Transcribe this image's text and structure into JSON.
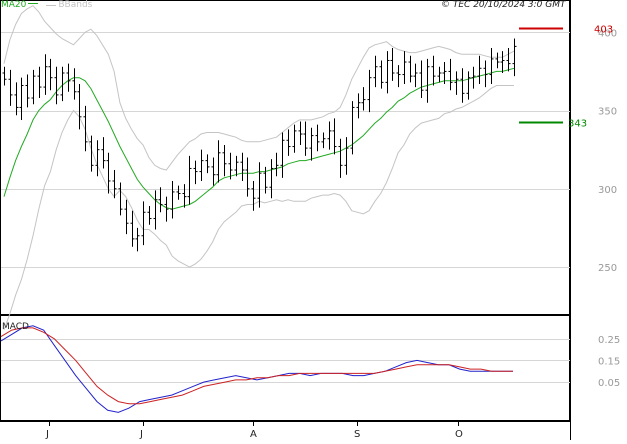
{
  "header": {
    "legend_ma": "MA20",
    "legend_bands": "BBands",
    "copyright": "© TEC 20/10/2024 3:0 GMT"
  },
  "chart_data": [
    {
      "type": "ohlc",
      "panel": "price",
      "ylim": [
        220,
        420
      ],
      "yticks": [
        "400",
        "350",
        "300",
        "250"
      ],
      "ytick_values": [
        400,
        350,
        300,
        250
      ],
      "grid": true,
      "resistance": {
        "value": 403,
        "label": "403",
        "color": "#cc0000"
      },
      "support": {
        "value": 343,
        "label": "343",
        "color": "#008800"
      },
      "colors": {
        "bars": "#000000",
        "ma": "#22aa22",
        "bands": "#c4c4c4"
      },
      "closes": [
        370,
        360,
        352,
        366,
        358,
        372,
        365,
        378,
        371,
        360,
        374,
        369,
        362,
        346,
        330,
        315,
        325,
        318,
        305,
        300,
        287,
        278,
        268,
        270,
        285,
        281,
        293,
        290,
        287,
        298,
        297,
        295,
        313,
        311,
        318,
        314,
        309,
        323,
        316,
        312,
        317,
        312,
        300,
        294,
        310,
        301,
        313,
        315,
        331,
        327,
        337,
        335,
        326,
        334,
        330,
        332,
        337,
        327,
        315,
        326,
        352,
        355,
        357,
        371,
        378,
        368,
        382,
        374,
        373,
        381,
        372,
        374,
        363,
        378,
        372,
        374,
        375,
        368,
        370,
        361,
        371,
        372,
        377,
        373,
        383,
        381,
        382,
        380,
        391
      ],
      "ma20": [
        295,
        307,
        318,
        327,
        335,
        344,
        350,
        354,
        357,
        362,
        366,
        369,
        371,
        371,
        369,
        364,
        357,
        350,
        343,
        335,
        327,
        320,
        313,
        306,
        301,
        297,
        293,
        290,
        288,
        287,
        288,
        289,
        290,
        292,
        295,
        298,
        301,
        305,
        307,
        308,
        309,
        310,
        310,
        310,
        311,
        311,
        312,
        313,
        314,
        316,
        317,
        318,
        318,
        319,
        320,
        321,
        322,
        323,
        324,
        326,
        328,
        331,
        334,
        338,
        342,
        345,
        349,
        352,
        356,
        358,
        361,
        363,
        365,
        366,
        367,
        368,
        369,
        369,
        369,
        369,
        370,
        371,
        372,
        373,
        374,
        375,
        375,
        376,
        377
      ],
      "bb_upper": [
        380,
        395,
        405,
        412,
        415,
        417,
        413,
        407,
        403,
        399,
        396,
        394,
        392,
        396,
        400,
        402,
        398,
        392,
        386,
        375,
        355,
        345,
        338,
        332,
        328,
        320,
        315,
        313,
        312,
        317,
        322,
        326,
        330,
        332,
        335,
        336,
        336,
        336,
        335,
        334,
        333,
        331,
        330,
        330,
        330,
        331,
        332,
        333,
        336,
        339,
        342,
        344,
        344,
        344,
        345,
        346,
        348,
        349,
        352,
        360,
        370,
        377,
        384,
        390,
        392,
        393,
        394,
        391,
        389,
        388,
        387,
        387,
        388,
        389,
        390,
        391,
        390,
        389,
        387,
        386,
        386,
        386,
        386,
        385,
        384,
        384,
        384,
        386,
        388
      ],
      "bb_lower": [
        210,
        220,
        232,
        242,
        255,
        270,
        287,
        302,
        311,
        325,
        336,
        344,
        350,
        346,
        338,
        326,
        316,
        308,
        300,
        295,
        299,
        295,
        288,
        280,
        274,
        274,
        271,
        267,
        264,
        257,
        254,
        252,
        250,
        252,
        255,
        260,
        266,
        274,
        279,
        282,
        285,
        289,
        290,
        290,
        292,
        291,
        292,
        293,
        292,
        293,
        292,
        292,
        292,
        294,
        295,
        296,
        296,
        297,
        296,
        292,
        286,
        285,
        284,
        286,
        292,
        297,
        304,
        313,
        323,
        328,
        335,
        339,
        342,
        343,
        344,
        345,
        348,
        349,
        351,
        352,
        354,
        356,
        358,
        361,
        364,
        366,
        366,
        366,
        366
      ]
    },
    {
      "type": "line",
      "panel": "macd",
      "title": "MACD",
      "ylim": [
        -0.125,
        0.355
      ],
      "yticks": [
        "0.25",
        "0.15",
        "0.05"
      ],
      "ytick_values": [
        0.25,
        0.15,
        0.05
      ],
      "grid": true,
      "series": [
        {
          "color": "#2222cc",
          "values": [
            0.24,
            0.27,
            0.3,
            0.31,
            0.29,
            0.22,
            0.15,
            0.08,
            0.02,
            -0.04,
            -0.08,
            -0.09,
            -0.07,
            -0.04,
            -0.03,
            -0.02,
            -0.01,
            0.01,
            0.03,
            0.05,
            0.06,
            0.07,
            0.08,
            0.07,
            0.06,
            0.07,
            0.08,
            0.09,
            0.09,
            0.08,
            0.09,
            0.09,
            0.09,
            0.08,
            0.08,
            0.09,
            0.1,
            0.12,
            0.14,
            0.15,
            0.14,
            0.13,
            0.13,
            0.11,
            0.1,
            0.1,
            0.1,
            0.1,
            0.1
          ]
        },
        {
          "color": "#cc2222",
          "values": [
            0.26,
            0.29,
            0.3,
            0.3,
            0.28,
            0.25,
            0.2,
            0.15,
            0.09,
            0.03,
            -0.01,
            -0.04,
            -0.05,
            -0.05,
            -0.04,
            -0.03,
            -0.02,
            -0.01,
            0.01,
            0.03,
            0.04,
            0.05,
            0.06,
            0.06,
            0.07,
            0.07,
            0.08,
            0.08,
            0.09,
            0.09,
            0.09,
            0.09,
            0.09,
            0.09,
            0.09,
            0.09,
            0.1,
            0.11,
            0.12,
            0.13,
            0.13,
            0.13,
            0.13,
            0.12,
            0.11,
            0.11,
            0.1,
            0.1,
            0.1
          ]
        }
      ]
    }
  ],
  "x_axis": {
    "labels": [
      "J",
      "J",
      "A",
      "S",
      "O"
    ]
  }
}
